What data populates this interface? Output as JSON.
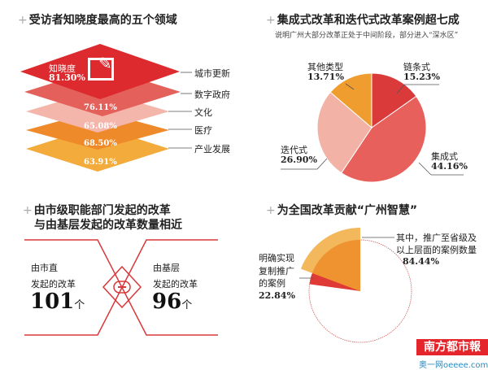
{
  "chart_data": [
    {
      "type": "layered-diamond",
      "title": "受访者知晓度最高的五个领域",
      "header_label": "知晓度",
      "categories": [
        "城市更新",
        "数字政府",
        "文化",
        "医疗",
        "产业发展"
      ],
      "values": [
        81.3,
        76.11,
        65.08,
        68.5,
        63.91
      ],
      "value_labels": [
        "81.30%",
        "76.11%",
        "65.08%",
        "68.50%",
        "63.91%"
      ],
      "colors": [
        "#dc2a2e",
        "#e4605a",
        "#f4b5aa",
        "#ee8a2a",
        "#f3ab3c"
      ]
    },
    {
      "type": "pie",
      "title": "集成式改革和迭代式改革案例超七成",
      "subtitle": "说明广州大部分改革正处于中间阶段，部分进入“深水区”",
      "categories": [
        "链条式",
        "集成式",
        "迭代式",
        "其他类型"
      ],
      "values": [
        15.23,
        44.16,
        26.9,
        13.71
      ],
      "value_labels": [
        "15.23%",
        "44.16%",
        "26.90%",
        "13.71%"
      ],
      "colors": [
        "#db3a3b",
        "#e8605b",
        "#f3b2a6",
        "#ef9d2e"
      ]
    },
    {
      "type": "comparison",
      "title_line1": "由市级职能部门发起的改革",
      "title_line2": "与由基层发起的改革数量相近",
      "left": {
        "line1": "由市直",
        "line2": "发起的改革",
        "value": 101,
        "value_text": "101",
        "unit": "个"
      },
      "right": {
        "line1": "由基层",
        "line2": "发起的改革",
        "value": 96,
        "value_text": "96",
        "unit": "个"
      },
      "symbol": "="
    },
    {
      "type": "pie",
      "title": "为全国改革贡献“广州智慧”",
      "categories": [
        "明确实现复制推广的案例",
        "其中，推广至省级及以上层面的案例数量"
      ],
      "values": [
        22.84,
        84.44
      ],
      "left_label": [
        "明确实现",
        "复制推广",
        "的案例"
      ],
      "left_value": "22.84%",
      "right_label": [
        "其中，推广至省级及",
        "以上层面的案例数量"
      ],
      "right_value": "84.44%"
    }
  ],
  "logo": {
    "name": "南方都市報",
    "site": "奥一网oeeee.com"
  }
}
